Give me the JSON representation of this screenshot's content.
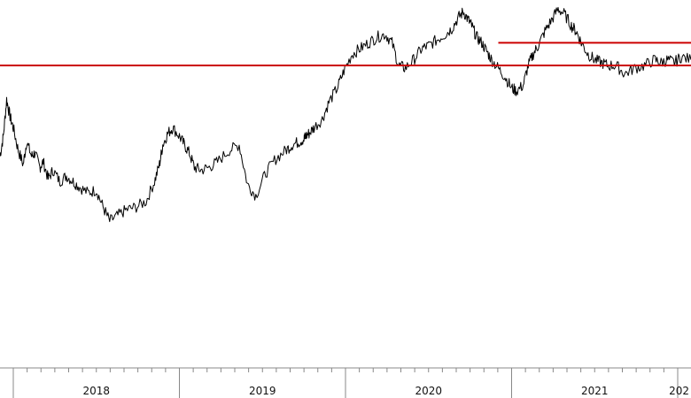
{
  "chart_data": {
    "type": "line",
    "title": "",
    "xlabel": "",
    "ylabel": "",
    "grid": false,
    "legend": "none",
    "colors": {
      "price_line": "#000000",
      "support_lines": "#cc0000",
      "axis": "#888888"
    },
    "x_tick_labels": [
      "2018",
      "2019",
      "2020",
      "2021",
      "202"
    ],
    "year_boundaries": [
      2017.92,
      2018.92,
      2019.92,
      2020.92,
      2021.92
    ],
    "xlim": [
      2017.84,
      2022.0
    ],
    "ylim": [
      0,
      100
    ],
    "series": [
      {
        "values_x": [
          2017.84,
          2017.86,
          2017.88,
          2017.9,
          2017.92,
          2017.95,
          2017.98,
          2018.0,
          2018.03,
          2018.05,
          2018.08,
          2018.1,
          2018.13,
          2018.16,
          2018.2,
          2018.24,
          2018.28,
          2018.32,
          2018.37,
          2018.42,
          2018.46,
          2018.5,
          2018.55,
          2018.6,
          2018.66,
          2018.72,
          2018.77,
          2018.8,
          2018.82,
          2018.85,
          2018.88,
          2018.92,
          2018.95,
          2018.98,
          2019.01,
          2019.05,
          2019.1,
          2019.15,
          2019.22,
          2019.28,
          2019.33,
          2019.38,
          2019.44,
          2019.5,
          2019.56,
          2019.6,
          2019.64,
          2019.67,
          2019.68,
          2019.7,
          2019.73,
          2019.78,
          2019.82,
          2019.87,
          2019.91,
          2019.96,
          2020.01,
          2020.06,
          2020.11,
          2020.16,
          2020.2,
          2020.24,
          2020.28,
          2020.33,
          2020.38,
          2020.42,
          2020.47,
          2020.52,
          2020.56,
          2020.6,
          2020.63,
          2020.66,
          2020.68,
          2020.71,
          2020.74,
          2020.77,
          2020.8,
          2020.84,
          2020.88,
          2020.92,
          2020.95,
          2020.99,
          2021.02,
          2021.05,
          2021.08,
          2021.12,
          2021.16,
          2021.2,
          2021.24,
          2021.28,
          2021.31,
          2021.34,
          2021.38,
          2021.42,
          2021.46,
          2021.5,
          2021.55,
          2021.6,
          2021.66,
          2021.72,
          2021.78,
          2021.82,
          2021.86,
          2021.9,
          2021.94,
          2022.0
        ],
        "values_y": [
          48,
          55,
          68,
          62,
          58,
          50,
          45,
          53,
          48,
          49,
          44,
          46,
          40,
          43,
          39,
          41,
          39,
          37,
          35,
          36,
          30,
          25,
          27,
          29,
          30,
          32,
          39,
          45,
          52,
          56,
          58,
          55,
          52,
          49,
          44,
          43,
          44,
          46,
          50,
          52,
          38,
          34,
          42,
          47,
          50,
          52,
          53,
          54,
          55,
          56,
          58,
          61,
          67,
          72,
          78,
          84,
          86,
          88,
          90,
          91,
          88,
          80,
          79,
          82,
          86,
          87,
          89,
          91,
          93,
          97,
          99,
          96,
          94,
          90,
          88,
          85,
          82,
          79,
          76,
          72,
          71,
          73,
          80,
          84,
          87,
          92,
          96,
          100,
          98,
          94,
          92,
          88,
          84,
          82,
          81,
          80,
          80,
          77,
          79,
          80,
          82,
          81,
          82,
          81,
          83,
          82
        ]
      }
    ],
    "horizontal_lines": [
      {
        "y": 80,
        "x_start": 2017.84,
        "x_end": 2022.0
      },
      {
        "y": 88,
        "x_start": 2020.84,
        "x_end": 2022.0
      }
    ]
  }
}
